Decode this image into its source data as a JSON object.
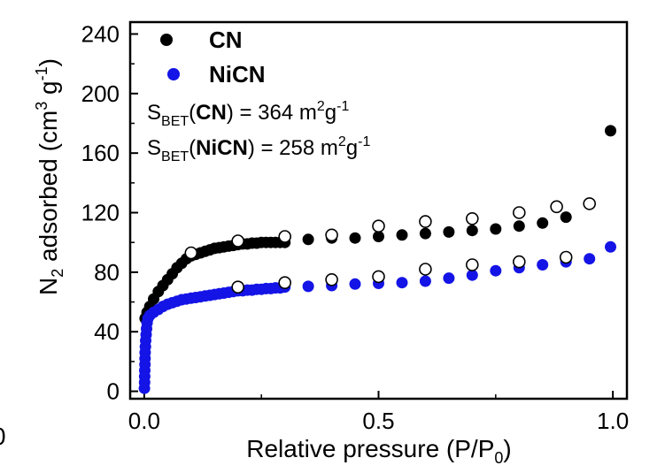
{
  "chart_data": {
    "type": "scatter",
    "xlabel": {
      "text": "Relative pressure (P/P",
      "sub": "0",
      "close": ")"
    },
    "ylabel": {
      "prefix": "N",
      "sub": "2",
      "mid": " adsorbed (cm",
      "sup1": "3",
      "g": " g",
      "sup2": "-1",
      "close": ")"
    },
    "xlim": [
      -0.03,
      1.03
    ],
    "ylim": [
      -5,
      248
    ],
    "xticks": [
      {
        "value": 0.0,
        "label": "0.0"
      },
      {
        "value": 0.5,
        "label": "0.5"
      },
      {
        "value": 1.0,
        "label": "1.0"
      }
    ],
    "yticks": [
      {
        "value": 0,
        "label": "0"
      },
      {
        "value": 40,
        "label": "40"
      },
      {
        "value": 80,
        "label": "80"
      },
      {
        "value": 120,
        "label": "120"
      },
      {
        "value": 160,
        "label": "160"
      },
      {
        "value": 200,
        "label": "200"
      },
      {
        "value": 240,
        "label": "240"
      }
    ],
    "legend": {
      "position": "top-left",
      "entries": [
        {
          "name": "CN",
          "color": "#000000"
        },
        {
          "name": "NiCN",
          "color": "#1414e6"
        }
      ]
    },
    "annotations": [
      {
        "pre": "S",
        "sub": "BET",
        "open": "(",
        "bold": "CN",
        "mid": ") = 364 m",
        "sup1": "2",
        "g": "g",
        "sup2": "-1"
      },
      {
        "pre": "S",
        "sub": "BET",
        "open": "(",
        "bold": "NiCN",
        "mid": ") = 258 m",
        "sup1": "2",
        "g": "g",
        "sup2": "-1"
      }
    ],
    "edge_fragment": "0",
    "series": [
      {
        "name": "CN",
        "color": "#000000",
        "adsorption": [
          [
            0.002,
            49
          ],
          [
            0.006,
            53
          ],
          [
            0.012,
            57
          ],
          [
            0.02,
            62
          ],
          [
            0.03,
            67
          ],
          [
            0.04,
            71
          ],
          [
            0.05,
            75
          ],
          [
            0.06,
            79
          ],
          [
            0.07,
            83
          ],
          [
            0.08,
            86
          ],
          [
            0.09,
            89
          ],
          [
            0.1,
            91
          ],
          [
            0.11,
            92
          ],
          [
            0.12,
            93
          ],
          [
            0.13,
            94
          ],
          [
            0.14,
            95
          ],
          [
            0.15,
            96
          ],
          [
            0.16,
            96.5
          ],
          [
            0.17,
            97
          ],
          [
            0.18,
            97.5
          ],
          [
            0.19,
            98
          ],
          [
            0.2,
            98.5
          ],
          [
            0.21,
            99
          ],
          [
            0.22,
            99
          ],
          [
            0.23,
            99.5
          ],
          [
            0.24,
            99.5
          ],
          [
            0.25,
            100
          ],
          [
            0.26,
            100
          ],
          [
            0.27,
            100
          ],
          [
            0.28,
            100
          ],
          [
            0.29,
            100
          ],
          [
            0.3,
            100
          ],
          [
            0.35,
            102
          ],
          [
            0.4,
            103
          ],
          [
            0.45,
            103
          ],
          [
            0.5,
            104
          ],
          [
            0.55,
            105
          ],
          [
            0.6,
            106
          ],
          [
            0.65,
            107
          ],
          [
            0.7,
            108
          ],
          [
            0.75,
            109
          ],
          [
            0.8,
            111
          ],
          [
            0.85,
            113
          ],
          [
            0.9,
            117
          ],
          [
            0.95,
            126
          ],
          [
            0.995,
            175
          ]
        ],
        "desorption": [
          [
            0.1,
            93
          ],
          [
            0.2,
            101
          ],
          [
            0.3,
            104
          ],
          [
            0.4,
            105
          ],
          [
            0.5,
            111
          ],
          [
            0.6,
            114
          ],
          [
            0.7,
            116
          ],
          [
            0.8,
            120
          ],
          [
            0.88,
            124
          ],
          [
            0.95,
            126
          ]
        ]
      },
      {
        "name": "NiCN",
        "color": "#1414e6",
        "adsorption": [
          [
            0.0005,
            2
          ],
          [
            0.0008,
            6
          ],
          [
            0.001,
            10
          ],
          [
            0.0012,
            14
          ],
          [
            0.0015,
            18
          ],
          [
            0.0018,
            22
          ],
          [
            0.002,
            26
          ],
          [
            0.0025,
            30
          ],
          [
            0.003,
            34
          ],
          [
            0.004,
            38
          ],
          [
            0.005,
            42
          ],
          [
            0.006,
            46
          ],
          [
            0.008,
            49
          ],
          [
            0.012,
            51
          ],
          [
            0.02,
            53
          ],
          [
            0.03,
            55
          ],
          [
            0.04,
            57
          ],
          [
            0.05,
            58.5
          ],
          [
            0.06,
            59.5
          ],
          [
            0.07,
            60.5
          ],
          [
            0.08,
            61.5
          ],
          [
            0.09,
            62
          ],
          [
            0.1,
            62.5
          ],
          [
            0.11,
            63
          ],
          [
            0.12,
            63.5
          ],
          [
            0.13,
            64
          ],
          [
            0.14,
            64.5
          ],
          [
            0.15,
            65
          ],
          [
            0.16,
            65.5
          ],
          [
            0.17,
            66
          ],
          [
            0.18,
            66.5
          ],
          [
            0.19,
            67
          ],
          [
            0.2,
            67.5
          ],
          [
            0.21,
            67.5
          ],
          [
            0.22,
            68
          ],
          [
            0.23,
            68
          ],
          [
            0.24,
            68.5
          ],
          [
            0.25,
            68.5
          ],
          [
            0.26,
            69
          ],
          [
            0.27,
            69
          ],
          [
            0.28,
            69.5
          ],
          [
            0.29,
            69.5
          ],
          [
            0.3,
            70
          ],
          [
            0.35,
            70.5
          ],
          [
            0.4,
            71
          ],
          [
            0.45,
            72
          ],
          [
            0.5,
            72.5
          ],
          [
            0.55,
            73
          ],
          [
            0.6,
            74
          ],
          [
            0.65,
            76
          ],
          [
            0.7,
            78
          ],
          [
            0.75,
            81
          ],
          [
            0.8,
            83
          ],
          [
            0.85,
            85
          ],
          [
            0.9,
            87
          ],
          [
            0.95,
            89
          ],
          [
            0.995,
            97
          ]
        ],
        "desorption": [
          [
            0.2,
            70
          ],
          [
            0.3,
            73
          ],
          [
            0.4,
            75
          ],
          [
            0.5,
            77
          ],
          [
            0.6,
            82
          ],
          [
            0.7,
            85
          ],
          [
            0.8,
            87
          ],
          [
            0.9,
            90
          ]
        ]
      }
    ]
  }
}
